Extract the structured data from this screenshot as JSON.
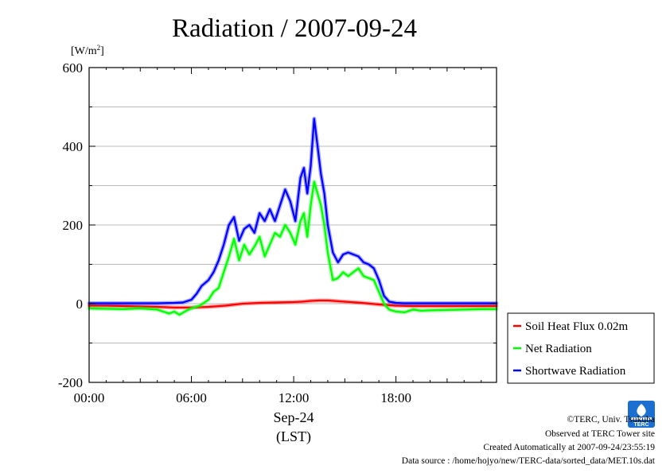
{
  "chart_data": {
    "type": "line",
    "title": "Radiation / 2007-09-24",
    "ylabel_unit": "[W/m",
    "ylabel_unit_sup": "2",
    "ylabel_unit_end": "]",
    "ylim": [
      -200,
      600
    ],
    "yticks": [
      "-200",
      "0",
      "200",
      "400",
      "600"
    ],
    "xlim": [
      0,
      23.9
    ],
    "xticks": [
      "00:00",
      "06:00",
      "12:00",
      "18:00"
    ],
    "xlabel_date": "Sep-24",
    "xlabel": "(LST)",
    "grid": true,
    "legend_position": "right",
    "series": [
      {
        "name": "Soil Heat Flux 0.02m",
        "color": "#ff0000",
        "x": [
          0,
          1,
          2,
          3,
          4,
          5,
          6,
          7,
          8,
          9,
          10,
          11,
          12,
          12.5,
          13,
          13.5,
          14,
          15,
          16,
          17,
          18,
          19,
          20,
          21,
          22,
          23,
          23.9
        ],
        "y": [
          -5,
          -5,
          -6,
          -7,
          -8,
          -10,
          -10,
          -8,
          -5,
          0,
          2,
          3,
          4,
          5,
          7,
          8,
          8,
          5,
          2,
          -2,
          -5,
          -6,
          -6,
          -6,
          -6,
          -6,
          -6
        ]
      },
      {
        "name": "Net Radiation",
        "color": "#00ff00",
        "x": [
          0,
          1,
          2,
          3,
          4,
          4.7,
          5,
          5.3,
          5.7,
          6,
          6.5,
          7,
          7.3,
          7.6,
          7.9,
          8.2,
          8.5,
          8.8,
          9.1,
          9.4,
          9.7,
          10,
          10.3,
          10.6,
          10.9,
          11.2,
          11.5,
          11.8,
          12.1,
          12.4,
          12.6,
          12.8,
          13,
          13.2,
          13.4,
          13.6,
          13.8,
          14,
          14.3,
          14.6,
          14.9,
          15.2,
          15.5,
          15.8,
          16.1,
          16.4,
          16.7,
          17,
          17.3,
          17.6,
          18,
          18.5,
          19,
          19.5,
          20,
          21,
          22,
          23,
          23.9
        ],
        "y": [
          -12,
          -13,
          -14,
          -12,
          -15,
          -25,
          -20,
          -28,
          -18,
          -12,
          -5,
          10,
          30,
          40,
          80,
          120,
          165,
          110,
          150,
          125,
          145,
          170,
          120,
          150,
          180,
          170,
          200,
          180,
          150,
          210,
          230,
          170,
          250,
          310,
          280,
          250,
          200,
          130,
          60,
          65,
          80,
          70,
          80,
          90,
          70,
          65,
          60,
          30,
          0,
          -15,
          -20,
          -22,
          -15,
          -18,
          -17,
          -16,
          -15,
          -14,
          -14
        ]
      },
      {
        "name": "Shortwave Radiation",
        "color": "#0000ff",
        "x": [
          0,
          1,
          2,
          3,
          4,
          5,
          5.5,
          6,
          6.3,
          6.6,
          7,
          7.3,
          7.6,
          7.9,
          8.2,
          8.5,
          8.8,
          9.1,
          9.4,
          9.7,
          10,
          10.3,
          10.6,
          10.9,
          11.2,
          11.5,
          11.8,
          12.1,
          12.4,
          12.6,
          12.8,
          13,
          13.2,
          13.4,
          13.6,
          13.8,
          14,
          14.3,
          14.6,
          14.9,
          15.2,
          15.5,
          15.8,
          16.1,
          16.4,
          16.7,
          17,
          17.3,
          17.6,
          18,
          18.5,
          19,
          20,
          21,
          22,
          23,
          23.9
        ],
        "y": [
          1,
          1,
          1,
          1,
          1,
          2,
          3,
          10,
          25,
          45,
          60,
          80,
          110,
          150,
          200,
          220,
          160,
          190,
          200,
          180,
          230,
          210,
          240,
          210,
          250,
          290,
          260,
          210,
          320,
          345,
          280,
          350,
          470,
          400,
          330,
          280,
          200,
          130,
          105,
          125,
          130,
          125,
          120,
          105,
          100,
          90,
          60,
          20,
          5,
          2,
          1,
          1,
          1,
          1,
          1,
          1,
          1
        ]
      }
    ]
  },
  "credits": {
    "copyright": "©TERC, Univ. Tsukuba",
    "observed": "Observed at TERC Tower site",
    "created": "Created Automatically at 2007-09-24/23:55:19",
    "source": "Data source : /home/hojyo/new/TERC-data/sorted_data/MET.10s.dat"
  },
  "logo": {
    "text": "TERC",
    "color": "#1a6fd0"
  }
}
